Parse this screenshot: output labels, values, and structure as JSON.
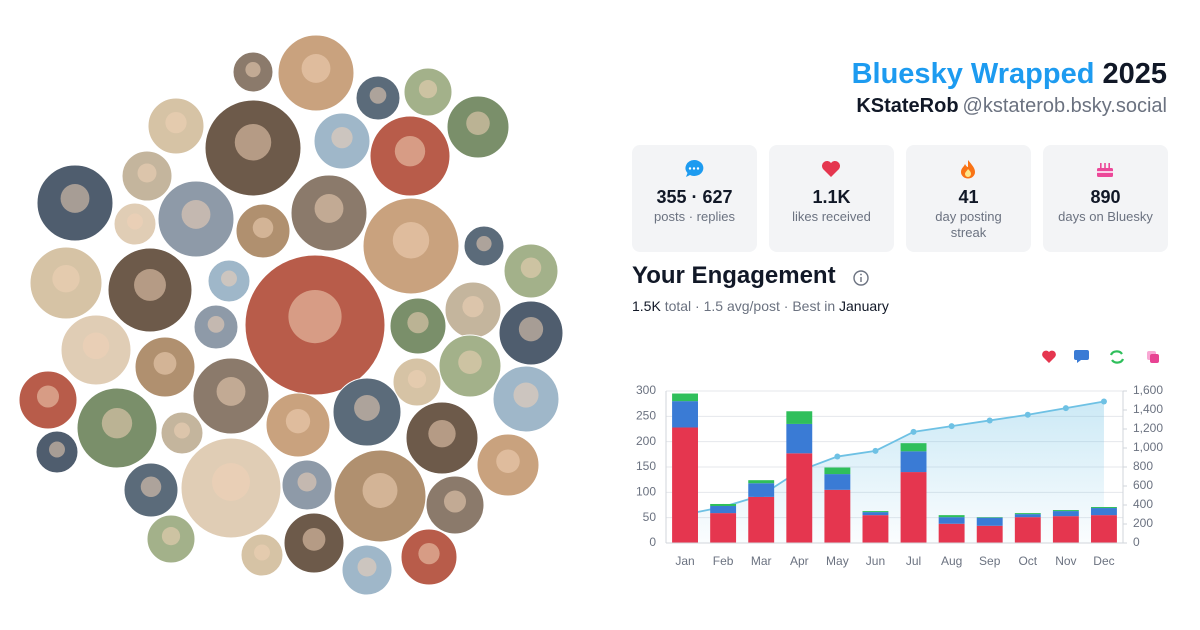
{
  "header": {
    "title": "Bluesky Wrapped",
    "year": "2025",
    "display_name": "KStateRob",
    "handle": "@kstaterob.bsky.social"
  },
  "stats": [
    {
      "value": "355 · 627",
      "label": "posts · replies"
    },
    {
      "value": "1.1K",
      "label": "likes received"
    },
    {
      "value": "41",
      "label": "day posting streak"
    },
    {
      "value": "890",
      "label": "days on Bluesky"
    }
  ],
  "engagement": {
    "title": "Your Engagement",
    "summary": [
      "1.5K",
      "total · 1.5 avg/post · Best in",
      "January"
    ]
  },
  "chart_data": {
    "type": "bar",
    "stacked": true,
    "categories": [
      "Jan",
      "Feb",
      "Mar",
      "Apr",
      "May",
      "Jun",
      "Jul",
      "Aug",
      "Sep",
      "Oct",
      "Nov",
      "Dec"
    ],
    "series": [
      {
        "color": "#e5364f",
        "values": [
          228,
          59,
          91,
          177,
          105,
          55,
          140,
          38,
          34,
          51,
          53,
          55
        ]
      },
      {
        "color": "#3a7bd5",
        "values": [
          52,
          14,
          27,
          58,
          31,
          6,
          41,
          13,
          16,
          6,
          10,
          14
        ]
      },
      {
        "color": "#2fbf5b",
        "values": [
          15,
          4,
          6,
          25,
          13,
          2,
          16,
          4,
          1,
          2,
          2,
          2
        ]
      },
      {
        "type": "line",
        "axis": "y2",
        "color": "#6ec1e4",
        "values": [
          300,
          380,
          500,
          760,
          910,
          970,
          1170,
          1230,
          1290,
          1350,
          1420,
          1490
        ]
      }
    ],
    "ylim": [
      0,
      300
    ],
    "yticks": [
      0,
      50,
      100,
      150,
      200,
      250,
      300
    ],
    "y2lim": [
      0,
      1600
    ],
    "y2ticks": [
      0,
      200,
      400,
      600,
      800,
      {
        "value": 1000,
        "label": "1,000"
      },
      {
        "value": 1200,
        "label": "1,200"
      },
      {
        "value": 1400,
        "label": "1,400"
      },
      {
        "value": 1600,
        "label": "1,600"
      }
    ],
    "grid": true
  }
}
